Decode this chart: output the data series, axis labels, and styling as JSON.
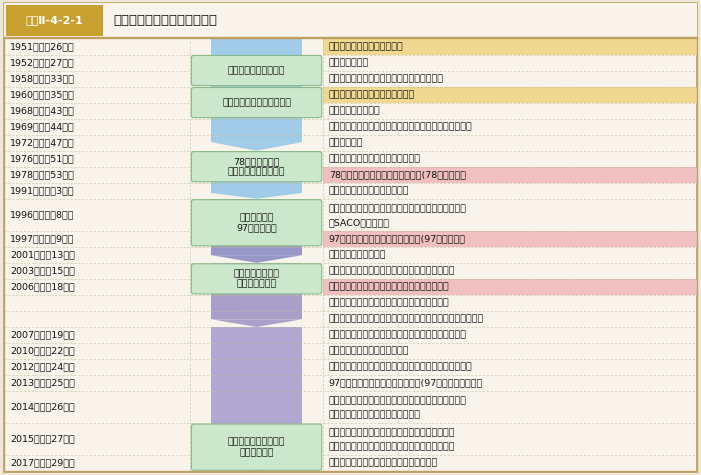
{
  "title_label": "図表Ⅱ-4-2-1",
  "title_text": "日米同盟にかかわる主な経緯",
  "body_bg": "#f5f0e8",
  "outer_border_color": "#c8a878",
  "row_line_color": "#c8b898",
  "gold_highlight": "#f0d890",
  "pink_highlight": "#f0c0c0",
  "phase_box_fill": "#cce8cc",
  "phase_box_border": "#88b888",
  "label_box_fill": "#c8a030",
  "rows": [
    {
      "year": "1951（昭和26）年",
      "event": "旧「日米安全保障条約」承認",
      "highlight": "gold"
    },
    {
      "year": "1952（昭和27）年",
      "event": "「同条約」発効",
      "highlight": null
    },
    {
      "year": "1958（昭和33）年",
      "event": "藤山・ダレス会談（日米安保条約改定同意）",
      "highlight": null
    },
    {
      "year": "1960（昭和35）年",
      "event": "「日米安全保障条約」承認・発効",
      "highlight": "gold"
    },
    {
      "year": "1968（昭和43）年",
      "event": "（小笠原諸島復帰）",
      "highlight": null
    },
    {
      "year": "1969（昭和44）年",
      "event": "佐藤・ニクソン会談（安保条約継続、沖縄施政権返還）",
      "highlight": null
    },
    {
      "year": "1972（昭和47）年",
      "event": "（沖縄復帰）",
      "highlight": null
    },
    {
      "year": "1976（昭和51）年",
      "event": "（日米防衛協力小委員会設置合意）",
      "highlight": null
    },
    {
      "year": "1978（昭和53）年",
      "event": "78「日米防衛協力のための指针」(78指针）策定",
      "highlight": "pink"
    },
    {
      "year": "1991（平成　3）年",
      "event": "（旧ソ連の崩壊、冷戦の終結）",
      "highlight": null
    },
    {
      "year": "1996（平成　8）年",
      "event": "「日米安全保障共同宣言」（橋本・クリントン会談）\n「SACO最終報告」",
      "highlight": null
    },
    {
      "year": "1997（平成　9）年",
      "event": "97「日米防衛協力のための指针」(97指针）策定",
      "highlight": "pink"
    },
    {
      "year": "2001（平成13）年",
      "event": "（米国同時多発テロ）",
      "highlight": null
    },
    {
      "year": "2003（平成15）年",
      "event": "「世界の中の日米同盟」（小泉・ブッシュ会談）",
      "highlight": null
    },
    {
      "year": "2006（平成18）年",
      "event": "「再編の実施のための日米ロードマップ」策定",
      "highlight": "pink"
    },
    {
      "year": "",
      "event": "「新世紀の日米同盟」（小泉・ブッシュ会談）",
      "highlight": null
    },
    {
      "year": "",
      "event": "「世界とアジアのための日米同盟」（安倍・ブッシュ会談）",
      "highlight": null
    },
    {
      "year": "2007（平成19）年",
      "event": "「かけがえのない日米同盟」（安倍・ブッシュ会談）",
      "highlight": null
    },
    {
      "year": "2010（平成22）年",
      "event": "日米安全保障条約締結５０周年",
      "highlight": null
    },
    {
      "year": "2012（平成24）年",
      "event": "「未来に向けた共通のビジョン」（野田・オバマ会談）",
      "highlight": null
    },
    {
      "year": "2013（平成25）年",
      "event": "97「日米防衛協力のための指针」(97指针）見直し合意",
      "highlight": null
    },
    {
      "year": "2014（平成26）年",
      "event": "「アジア太平洋及びこれを越えた地域の未来を形作る\n日本と米国」（安倍・オバマ会談）",
      "highlight": null
    },
    {
      "year": "2015（平成27）年",
      "event": "「日米共同ビジョン声明」（安倍・オバマ会談）\n新「日米防衛協力のための指针」（新指针）策定",
      "highlight": null
    },
    {
      "year": "2017（平成29）年",
      "event": "「日米共同声明」（安倍・トランプ会談）",
      "highlight": null
    }
  ],
  "phase_boxes": [
    {
      "rows": [
        1,
        2
      ],
      "text": "旧日米安保条約の時代"
    },
    {
      "rows": [
        3,
        4
      ],
      "text": "安保改定と新日米安保条約"
    },
    {
      "rows": [
        7,
        8
      ],
      "text": "78指针の策定と\n拡大する日米防衛協力"
    },
    {
      "rows": [
        10,
        11
      ],
      "text": "冷戦の終結と\n97指针の策定"
    },
    {
      "rows": [
        13,
        14
      ],
      "text": "米国同時多発テロ\n以降の日米関係"
    },
    {
      "rows": [
        22,
        23
      ],
      "text": "新たな安全保障環境と\n新指针の策定"
    }
  ],
  "arrow_bands": [
    {
      "rows": [
        0,
        6
      ],
      "color": "#a0cce8"
    },
    {
      "rows": [
        7,
        9
      ],
      "color": "#a0cce8"
    },
    {
      "rows": [
        10,
        12
      ],
      "color": "#9898c8"
    },
    {
      "rows": [
        13,
        16
      ],
      "color": "#a8a0c8"
    },
    {
      "rows": [
        17,
        23
      ],
      "color": "#b0a8d0"
    }
  ]
}
